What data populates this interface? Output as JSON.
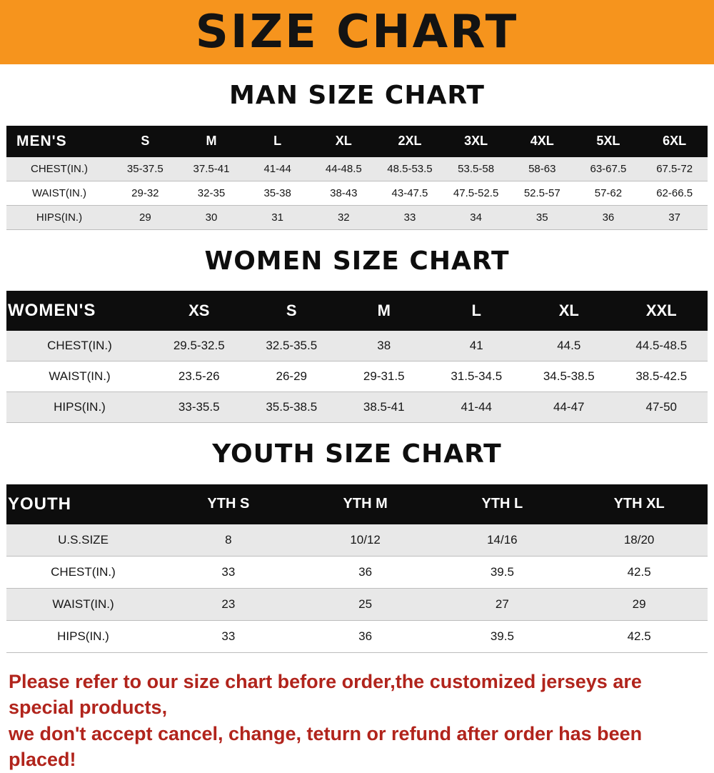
{
  "banner": {
    "title": "SIZE CHART"
  },
  "colors": {
    "banner_bg": "#F6941D",
    "header_bg": "#0D0D0D",
    "row_alt": "#E8E8E8",
    "footer_text": "#B1241C"
  },
  "sections": [
    {
      "heading": "MAN SIZE CHART",
      "table": {
        "header": [
          "MEN'S",
          "S",
          "M",
          "L",
          "XL",
          "2XL",
          "3XL",
          "4XL",
          "5XL",
          "6XL"
        ],
        "rows": [
          [
            "CHEST(IN.)",
            "35-37.5",
            "37.5-41",
            "41-44",
            "44-48.5",
            "48.5-53.5",
            "53.5-58",
            "58-63",
            "63-67.5",
            "67.5-72"
          ],
          [
            "WAIST(IN.)",
            "29-32",
            "32-35",
            "35-38",
            "38-43",
            "43-47.5",
            "47.5-52.5",
            "52.5-57",
            "57-62",
            "62-66.5"
          ],
          [
            "HIPS(IN.)",
            "29",
            "30",
            "31",
            "32",
            "33",
            "34",
            "35",
            "36",
            "37"
          ]
        ]
      }
    },
    {
      "heading": "WOMEN SIZE CHART",
      "table": {
        "header": [
          "WOMEN'S",
          "XS",
          "S",
          "M",
          "L",
          "XL",
          "XXL"
        ],
        "rows": [
          [
            "CHEST(IN.)",
            "29.5-32.5",
            "32.5-35.5",
            "38",
            "41",
            "44.5",
            "44.5-48.5"
          ],
          [
            "WAIST(IN.)",
            "23.5-26",
            "26-29",
            "29-31.5",
            "31.5-34.5",
            "34.5-38.5",
            "38.5-42.5"
          ],
          [
            "HIPS(IN.)",
            "33-35.5",
            "35.5-38.5",
            "38.5-41",
            "41-44",
            "44-47",
            "47-50"
          ]
        ]
      }
    },
    {
      "heading": "YOUTH SIZE CHART",
      "table": {
        "header": [
          "YOUTH",
          "YTH S",
          "YTH M",
          "YTH L",
          "YTH XL"
        ],
        "rows": [
          [
            "U.S.SIZE",
            "8",
            "10/12",
            "14/16",
            "18/20"
          ],
          [
            "CHEST(IN.)",
            "33",
            "36",
            "39.5",
            "42.5"
          ],
          [
            "WAIST(IN.)",
            "23",
            "25",
            "27",
            "29"
          ],
          [
            "HIPS(IN.)",
            "33",
            "36",
            "39.5",
            "42.5"
          ]
        ]
      }
    }
  ],
  "footer": {
    "lines": [
      "Please refer to our size chart before order,the customized jerseys are special products,",
      "we don't accept cancel, change, teturn or refund after order has been placed!"
    ]
  }
}
